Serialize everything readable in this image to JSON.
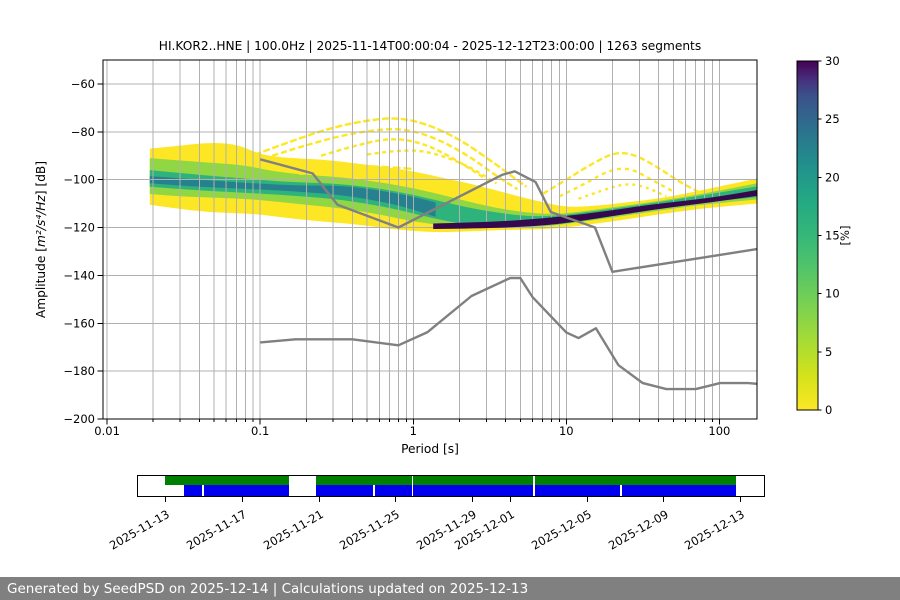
{
  "title": "HI.KOR2..HNE | 100.0Hz | 2025-11-14T00:00:04 - 2025-12-12T23:00:00 | 1263 segments",
  "footer": {
    "text": "Generated by SeedPSD on 2025-12-14 | Calculations updated on 2025-12-13"
  },
  "chart_data": {
    "type": "heatmap",
    "subtype": "ppsd-probability-histogram",
    "title": "HI.KOR2..HNE | 100.0Hz | 2025-11-14T00:00:04 - 2025-12-12T23:00:00 | 1263 segments",
    "xlabel": "Period [s]",
    "ylabel": {
      "pre": "Amplitude [",
      "math": "m²/s⁴/Hz",
      "post": "] [dB]"
    },
    "xscale": "log",
    "xlim": [
      0.0094,
      176
    ],
    "ylim": [
      -200,
      -50
    ],
    "grid": true,
    "xticks": [
      {
        "v": 0.01,
        "label": "0.01"
      },
      {
        "v": 0.1,
        "label": "0.1"
      },
      {
        "v": 1,
        "label": "1"
      },
      {
        "v": 10,
        "label": "10"
      },
      {
        "v": 100,
        "label": "100"
      }
    ],
    "yticks": [
      {
        "v": -60,
        "label": "−60"
      },
      {
        "v": -80,
        "label": "−80"
      },
      {
        "v": -100,
        "label": "−100"
      },
      {
        "v": -120,
        "label": "−120"
      },
      {
        "v": -140,
        "label": "−140"
      },
      {
        "v": -160,
        "label": "−160"
      },
      {
        "v": -180,
        "label": "−180"
      },
      {
        "v": -200,
        "label": "−200"
      }
    ],
    "colorbar": {
      "label": "[%]",
      "min": 0,
      "max": 30,
      "ticks": [
        {
          "v": 0,
          "label": "0"
        },
        {
          "v": 5,
          "label": "5"
        },
        {
          "v": 10,
          "label": "10"
        },
        {
          "v": 15,
          "label": "15"
        },
        {
          "v": 20,
          "label": "20"
        },
        {
          "v": 25,
          "label": "25"
        },
        {
          "v": 30,
          "label": "30"
        }
      ],
      "colormap": "viridis-reversed (0%=yellow, 30%=dark purple)",
      "gradient": [
        {
          "v": 0,
          "c": "#fde725"
        },
        {
          "v": 3,
          "c": "#d2e21b"
        },
        {
          "v": 6,
          "c": "#a5db36"
        },
        {
          "v": 9,
          "c": "#7ad151"
        },
        {
          "v": 12,
          "c": "#54c568"
        },
        {
          "v": 15,
          "c": "#35b779"
        },
        {
          "v": 18,
          "c": "#23a983"
        },
        {
          "v": 21,
          "c": "#21918c"
        },
        {
          "v": 24,
          "c": "#2c728e"
        },
        {
          "v": 27,
          "c": "#3b528b"
        },
        {
          "v": 28.5,
          "c": "#472d7b"
        },
        {
          "v": 30,
          "c": "#440154"
        }
      ]
    },
    "noise_models": {
      "color": "#808080",
      "nhnm": [
        [
          0.1,
          -91.5
        ],
        [
          0.22,
          -97.4
        ],
        [
          0.32,
          -110.5
        ],
        [
          0.8,
          -120.0
        ],
        [
          3.8,
          -98.0
        ],
        [
          4.6,
          -96.5
        ],
        [
          6.3,
          -101.0
        ],
        [
          7.9,
          -113.5
        ],
        [
          15.4,
          -120.0
        ],
        [
          20.0,
          -138.5
        ],
        [
          176,
          -129.0
        ]
      ],
      "nlnm": [
        [
          0.1,
          -168.0
        ],
        [
          0.17,
          -166.7
        ],
        [
          0.4,
          -166.7
        ],
        [
          0.8,
          -169.2
        ],
        [
          1.24,
          -163.7
        ],
        [
          2.4,
          -148.6
        ],
        [
          4.3,
          -141.1
        ],
        [
          5.0,
          -141.1
        ],
        [
          6.0,
          -149.0
        ],
        [
          10.0,
          -163.8
        ],
        [
          12.0,
          -166.2
        ],
        [
          15.6,
          -162.1
        ],
        [
          21.9,
          -177.5
        ],
        [
          31.6,
          -185.0
        ],
        [
          45.0,
          -187.5
        ],
        [
          70.0,
          -187.5
        ],
        [
          101.0,
          -185.0
        ],
        [
          154.0,
          -185.0
        ],
        [
          176,
          -185.3
        ]
      ]
    },
    "histogram_bands": [
      {
        "name": "low-probability-envelope",
        "color": "#fde725",
        "points": [
          [
            0.019,
            -87,
            -110.5
          ],
          [
            0.028,
            -86,
            -112
          ],
          [
            0.045,
            -84.5,
            -113.5
          ],
          [
            0.07,
            -85,
            -114
          ],
          [
            0.1,
            -89.5,
            -114.5
          ],
          [
            0.15,
            -91,
            -116
          ],
          [
            0.25,
            -91.5,
            -117.5
          ],
          [
            0.4,
            -93,
            -118.5
          ],
          [
            0.7,
            -95,
            -120.5
          ],
          [
            1.0,
            -96.5,
            -121.5
          ],
          [
            1.5,
            -99,
            -122
          ],
          [
            2.5,
            -102,
            -121.5
          ],
          [
            4,
            -105.5,
            -121
          ],
          [
            6.5,
            -109,
            -120.8
          ],
          [
            10,
            -111.5,
            -120
          ],
          [
            15,
            -111,
            -118.5
          ],
          [
            25,
            -109.5,
            -116.5
          ],
          [
            45,
            -107.5,
            -114
          ],
          [
            90,
            -103.5,
            -111.5
          ],
          [
            176,
            -99.5,
            -110
          ]
        ]
      },
      {
        "name": "mid-probability-band",
        "color": "#90d743",
        "points": [
          [
            0.019,
            -91,
            -106
          ],
          [
            0.03,
            -92,
            -107
          ],
          [
            0.05,
            -93,
            -107.5
          ],
          [
            0.08,
            -94,
            -108
          ],
          [
            0.12,
            -96.5,
            -109
          ],
          [
            0.2,
            -98,
            -110.5
          ],
          [
            0.35,
            -99,
            -112
          ],
          [
            0.6,
            -101,
            -114.5
          ],
          [
            1,
            -103.5,
            -117.5
          ],
          [
            1.7,
            -107,
            -119.5
          ],
          [
            3,
            -111,
            -120.3
          ],
          [
            5,
            -113.5,
            -120
          ],
          [
            8,
            -114.5,
            -119.3
          ],
          [
            12,
            -113.5,
            -117.8
          ],
          [
            20,
            -111.5,
            -115.8
          ],
          [
            40,
            -109,
            -113
          ],
          [
            80,
            -105.8,
            -110.3
          ],
          [
            176,
            -101.5,
            -108.3
          ]
        ]
      },
      {
        "name": "high-probability-band",
        "color": "#2eb37c",
        "points": [
          [
            0.019,
            -96,
            -103
          ],
          [
            0.04,
            -98,
            -104.5
          ],
          [
            0.08,
            -99.5,
            -105.5
          ],
          [
            0.15,
            -101,
            -106.5
          ],
          [
            0.3,
            -101.5,
            -108
          ],
          [
            0.5,
            -103,
            -110
          ],
          [
            0.8,
            -105,
            -112.5
          ],
          [
            1.3,
            -108,
            -116
          ],
          [
            2.2,
            -111.5,
            -118.8
          ],
          [
            3.5,
            -113.8,
            -119.8
          ],
          [
            6,
            -115.5,
            -119.5
          ],
          [
            10,
            -114.8,
            -118.3
          ],
          [
            18,
            -112.5,
            -115.8
          ],
          [
            35,
            -110,
            -112.8
          ],
          [
            70,
            -107,
            -109.8
          ],
          [
            176,
            -102.8,
            -107.3
          ]
        ]
      },
      {
        "name": "core-mode-band",
        "color": "#27808e",
        "points": [
          [
            0.019,
            -98.5,
            -101.5
          ],
          [
            0.04,
            -100,
            -103
          ],
          [
            0.09,
            -101.5,
            -104
          ],
          [
            0.18,
            -102.5,
            -105
          ],
          [
            0.35,
            -102.5,
            -106.5
          ],
          [
            0.6,
            -104.5,
            -109
          ],
          [
            0.9,
            -106.5,
            -111.5
          ],
          [
            1.4,
            -109.5,
            -115.5
          ]
        ]
      }
    ],
    "dark_band": {
      "name": "peak-probability-ridge",
      "color": "#35094c",
      "points": [
        [
          1.35,
          -118.3,
          -120.6
        ],
        [
          2.5,
          -117.8,
          -120.4
        ],
        [
          4,
          -117.3,
          -120
        ],
        [
          6,
          -116.5,
          -119.5
        ],
        [
          9,
          -115.5,
          -118.5
        ],
        [
          13,
          -114.3,
          -117
        ],
        [
          20,
          -112.8,
          -115.2
        ],
        [
          35,
          -110.5,
          -112.8
        ],
        [
          60,
          -108.8,
          -110.8
        ],
        [
          100,
          -107,
          -109
        ],
        [
          176,
          -104.3,
          -106.8
        ]
      ]
    },
    "outlier_curves": [
      {
        "color": "#fde725",
        "width": 2.4,
        "dash": "7 2.5",
        "points": [
          [
            0.08,
            -91
          ],
          [
            0.15,
            -84.5
          ],
          [
            0.3,
            -78
          ],
          [
            0.55,
            -74.8
          ],
          [
            0.8,
            -74.2
          ],
          [
            1.2,
            -76.5
          ],
          [
            2,
            -83
          ],
          [
            3.2,
            -92
          ],
          [
            4.5,
            -99
          ],
          [
            5.5,
            -103
          ]
        ]
      },
      {
        "color": "#fde725",
        "width": 2.4,
        "dash": "6 3",
        "points": [
          [
            0.12,
            -90
          ],
          [
            0.25,
            -83.5
          ],
          [
            0.5,
            -79.5
          ],
          [
            0.85,
            -78.5
          ],
          [
            1.4,
            -82.5
          ],
          [
            2.3,
            -90
          ],
          [
            3.6,
            -99
          ],
          [
            4.8,
            -104
          ]
        ]
      },
      {
        "color": "#fde725",
        "width": 2.4,
        "dash": "5 3",
        "points": [
          [
            0.25,
            -90
          ],
          [
            0.45,
            -85
          ],
          [
            0.75,
            -82.5
          ],
          [
            1.2,
            -85
          ],
          [
            2,
            -92.5
          ],
          [
            3.2,
            -101
          ]
        ]
      },
      {
        "color": "#fde725",
        "width": 2.4,
        "dash": "4 3.5",
        "points": [
          [
            0.5,
            -89.5
          ],
          [
            0.9,
            -87
          ],
          [
            1.5,
            -89.5
          ],
          [
            2.4,
            -95
          ],
          [
            3.5,
            -101.5
          ]
        ]
      },
      {
        "color": "#fde725",
        "width": 2.4,
        "dash": "6 3",
        "points": [
          [
            7,
            -106
          ],
          [
            10,
            -100
          ],
          [
            15,
            -93
          ],
          [
            21,
            -88.5
          ],
          [
            28,
            -89.5
          ],
          [
            40,
            -95
          ],
          [
            55,
            -101
          ],
          [
            75,
            -105.5
          ]
        ]
      },
      {
        "color": "#fde725",
        "width": 2.4,
        "dash": "4 4",
        "points": [
          [
            9,
            -107
          ],
          [
            13,
            -102
          ],
          [
            19,
            -96
          ],
          [
            26,
            -95
          ],
          [
            36,
            -100
          ],
          [
            50,
            -105
          ]
        ]
      },
      {
        "color": "#fde725",
        "width": 2.4,
        "dash": "3 4",
        "points": [
          [
            12,
            -108
          ],
          [
            18,
            -104
          ],
          [
            25,
            -101.5
          ],
          [
            33,
            -103
          ],
          [
            45,
            -107
          ]
        ]
      },
      {
        "color": "#fde725",
        "width": 2.4,
        "dash": "8 3",
        "points": [
          [
            0.14,
            -94.5
          ],
          [
            0.3,
            -94
          ],
          [
            0.6,
            -94.5
          ],
          [
            1,
            -95.5
          ]
        ]
      },
      {
        "color": "#fde725",
        "width": 2.4,
        "dash": "6 4",
        "points": [
          [
            0.18,
            -97.5
          ],
          [
            0.4,
            -97
          ],
          [
            0.8,
            -98
          ]
        ]
      }
    ]
  },
  "timeline": {
    "green_color": "#008000",
    "blue_color": "#0000ee",
    "green_segments_pct": [
      [
        4.39,
        24.13
      ],
      [
        28.38,
        43.7
      ],
      [
        43.92,
        63.12
      ],
      [
        63.44,
        95.49
      ]
    ],
    "blue_segments_pct": [
      [
        7.42,
        10.28
      ],
      [
        10.5,
        24.13
      ],
      [
        28.38,
        37.61
      ],
      [
        37.82,
        43.7
      ],
      [
        43.92,
        63.12
      ],
      [
        63.44,
        76.97
      ],
      [
        77.24,
        95.49
      ]
    ],
    "ticks": [
      {
        "label": "2025-11-13",
        "pct": 4.5
      },
      {
        "label": "2025-11-17",
        "pct": 16.71
      },
      {
        "label": "2025-11-21",
        "pct": 28.91
      },
      {
        "label": "2025-11-25",
        "pct": 41.11
      },
      {
        "label": "2025-11-29",
        "pct": 53.32
      },
      {
        "label": "2025-12-01",
        "pct": 59.41
      },
      {
        "label": "2025-12-05",
        "pct": 71.62
      },
      {
        "label": "2025-12-09",
        "pct": 83.82
      },
      {
        "label": "2025-12-13",
        "pct": 96.03
      }
    ]
  }
}
